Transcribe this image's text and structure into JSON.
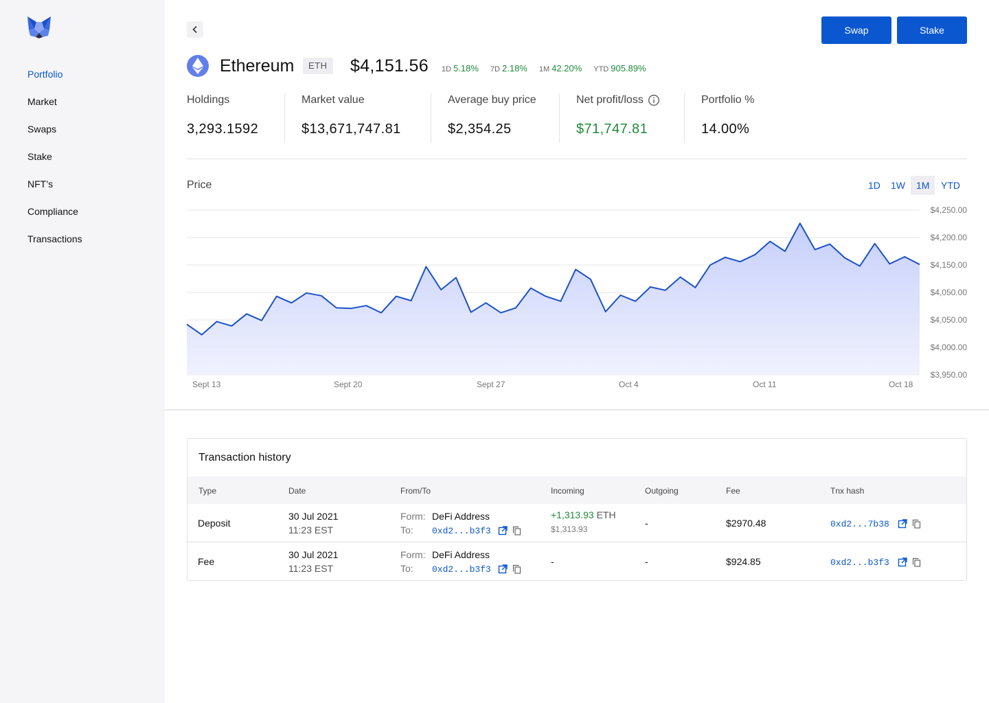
{
  "sidebar": {
    "items": [
      {
        "label": "Portfolio",
        "active": true
      },
      {
        "label": "Market"
      },
      {
        "label": "Swaps"
      },
      {
        "label": "Stake"
      },
      {
        "label": "NFT’s"
      },
      {
        "label": "Compliance"
      },
      {
        "label": "Transactions"
      }
    ]
  },
  "header": {
    "swap_label": "Swap",
    "stake_label": "Stake"
  },
  "asset": {
    "name": "Ethereum",
    "ticker": "ETH",
    "price": "$4,151.56",
    "changes": [
      {
        "label": "1D",
        "value": "5.18%"
      },
      {
        "label": "7D",
        "value": "2.18%"
      },
      {
        "label": "1M",
        "value": "42.20%"
      },
      {
        "label": "YTD",
        "value": "905.89%"
      }
    ]
  },
  "stats": {
    "holdings": {
      "label": "Holdings",
      "value": "3,293.1592"
    },
    "market_value": {
      "label": "Market value",
      "value": "$13,671,747.81"
    },
    "avg_buy": {
      "label": "Average buy price",
      "value": "$2,354.25"
    },
    "net_pl": {
      "label": "Net profit/loss",
      "value": "$71,747.81"
    },
    "portfolio_pct": {
      "label": "Portfolio %",
      "value": "14.00%"
    }
  },
  "price_section": {
    "label": "Price",
    "ranges": [
      "1D",
      "1W",
      "1M",
      "YTD"
    ],
    "active_range": "1M"
  },
  "chart_data": {
    "type": "area",
    "y_tick_labels": [
      "$4,250.00",
      "$4,200.00",
      "$4,150.00",
      "$4,050.00",
      "$4,050.00",
      "$4,000.00",
      "$3,950.00"
    ],
    "x_tick_labels": [
      "Sept 13",
      "Sept 20",
      "Sept 27",
      "Oct 4",
      "Oct 11",
      "Oct 18"
    ],
    "grid": true,
    "values": [
      4042,
      4023,
      4047,
      4039,
      4061,
      4049,
      4093,
      4081,
      4099,
      4094,
      4072,
      4071,
      4076,
      4063,
      4093,
      4085,
      4147,
      4105,
      4127,
      4064,
      4081,
      4063,
      4072,
      4108,
      4093,
      4084,
      4142,
      4124,
      4065,
      4095,
      4084,
      4110,
      4104,
      4128,
      4109,
      4150,
      4164,
      4156,
      4169,
      4193,
      4175,
      4226,
      4178,
      4188,
      4163,
      4148,
      4189,
      4152,
      4165,
      4151
    ]
  },
  "transactions": {
    "title": "Transaction history",
    "columns": [
      "Type",
      "Date",
      "From/To",
      "Incoming",
      "Outgoing",
      "Fee",
      "Tnx hash"
    ],
    "rows": [
      {
        "type": "Deposit",
        "date": "30 Jul 2021",
        "time": "11:23 EST",
        "from_label": "Form:",
        "from_value": "DeFi Address",
        "to_label": "To:",
        "to_value": "0xd2...b3f3",
        "incoming": "+1,313.93",
        "incoming_unit": "ETH",
        "incoming_usd": "$1,313.93",
        "outgoing": "-",
        "fee": "$2970.48",
        "hash": "0xd2...7b38"
      },
      {
        "type": "Fee",
        "date": "30 Jul 2021",
        "time": "11:23 EST",
        "from_label": "Form:",
        "from_value": "DeFi Address",
        "to_label": "To:",
        "to_value": "0xd2...b3f3",
        "incoming": "-",
        "outgoing": "-",
        "fee": "$924.85",
        "hash": "0xd2...b3f3"
      }
    ]
  },
  "colors": {
    "accent": "#0b57d0",
    "positive": "#1f8a3a",
    "sidebar_bg": "#f5f4f7",
    "chart_line": "#1b50c8",
    "chart_fill": "#c9d2fb"
  }
}
